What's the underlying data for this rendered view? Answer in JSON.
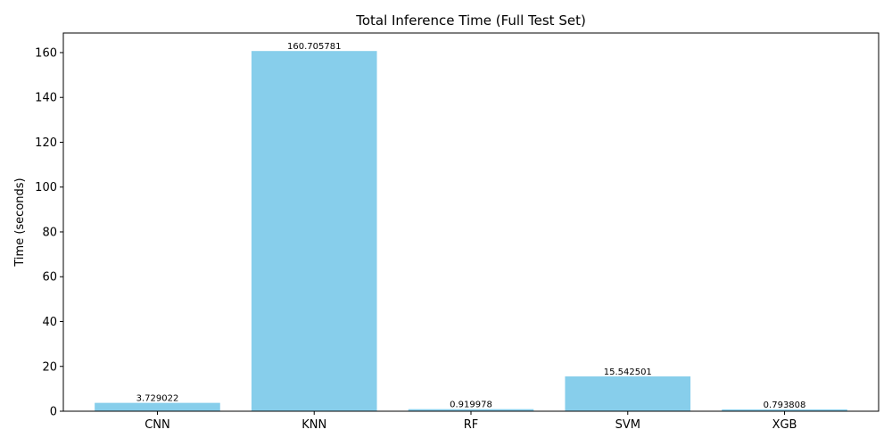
{
  "chart_data": {
    "type": "bar",
    "title": "Total Inference Time (Full Test Set)",
    "xlabel": "",
    "ylabel": "Time (seconds)",
    "categories": [
      "CNN",
      "KNN",
      "RF",
      "SVM",
      "XGB"
    ],
    "values": [
      3.729022,
      160.705781,
      0.919978,
      15.542501,
      0.793808
    ],
    "value_labels": [
      "3.729022",
      "160.705781",
      "0.919978",
      "15.542501",
      "0.793808"
    ],
    "ylim": [
      0,
      168.74
    ],
    "yticks": [
      0,
      20,
      40,
      60,
      80,
      100,
      120,
      140,
      160
    ],
    "ytick_labels": [
      "0",
      "20",
      "40",
      "60",
      "80",
      "100",
      "120",
      "140",
      "160"
    ],
    "bar_color": "#87CEEB",
    "grid": false,
    "legend": "none"
  }
}
